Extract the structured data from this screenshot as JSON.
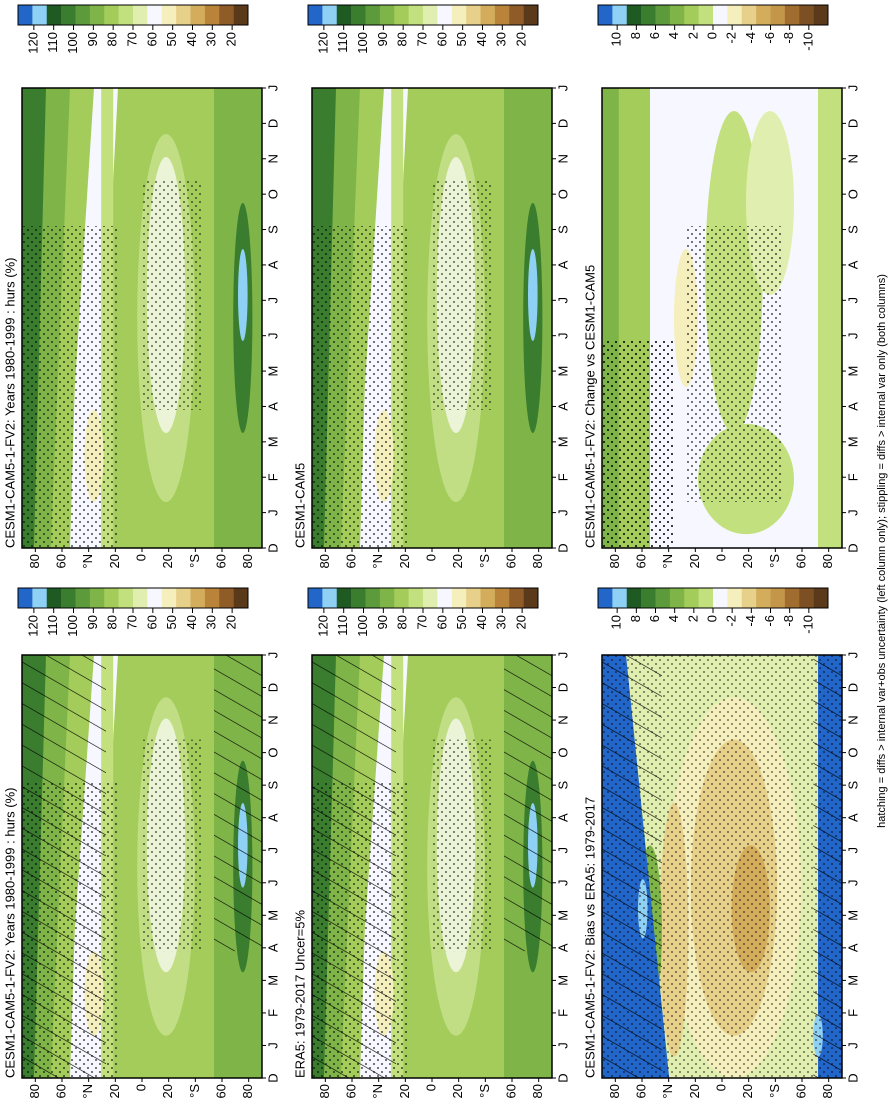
{
  "months": [
    "D",
    "J",
    "F",
    "M",
    "A",
    "M",
    "J",
    "J",
    "A",
    "S",
    "O",
    "N",
    "D",
    "J"
  ],
  "lat_ticks": [
    80,
    60,
    {
      "value": 40,
      "label": "°N"
    },
    20,
    0,
    {
      "value": -20,
      "label": "20"
    },
    {
      "value": -40,
      "label": "°S"
    },
    {
      "value": -60,
      "label": "60"
    },
    {
      "value": -80,
      "label": "80"
    }
  ],
  "latlim": [
    90,
    -90
  ],
  "footnote": "hatching = diffs > internal var+obs uncertainty (left column only); stippling = diffs > internal var only (both columns)",
  "panels": [
    {
      "title": "CESM1-CAM5-1-FV2: Years 1980-1999 : hurs (%)",
      "colorbar": {
        "clim": [
          128,
          12
        ],
        "ticks": [
          120,
          110,
          100,
          90,
          80,
          70,
          60,
          50,
          40,
          30,
          20
        ],
        "colors": [
          "#2166c8",
          "#8fd0f5",
          "#1e5a22",
          "#3a7d2e",
          "#5d9a3c",
          "#7fb548",
          "#a3cc5a",
          "#c3e07e",
          "#e0efb0",
          "#f7f8ff",
          "#f5eebd",
          "#e7d08a",
          "#d4ad5c",
          "#b9833a",
          "#8f5c28",
          "#5b3a1c"
        ]
      }
    },
    {
      "title": "CESM1-CAM5",
      "colorbar": {
        "clim": [
          128,
          12
        ],
        "ticks": [
          120,
          110,
          100,
          90,
          80,
          70,
          60,
          50,
          40,
          30,
          20
        ],
        "colors": [
          "#2166c8",
          "#8fd0f5",
          "#1e5a22",
          "#3a7d2e",
          "#5d9a3c",
          "#7fb548",
          "#a3cc5a",
          "#c3e07e",
          "#e0efb0",
          "#f7f8ff",
          "#f5eebd",
          "#e7d08a",
          "#d4ad5c",
          "#b9833a",
          "#8f5c28",
          "#5b3a1c"
        ]
      }
    },
    {
      "title": "CESM1-CAM5-1-FV2: Change vs CESM1-CAM5",
      "colorbar": {
        "clim": [
          12,
          -12
        ],
        "ticks": [
          10,
          8,
          6,
          4,
          2,
          0,
          -2,
          -4,
          -6,
          -8,
          -10
        ],
        "colors": [
          "#2166c8",
          "#8fd0f5",
          "#1e5a22",
          "#3a7d2e",
          "#5d9a3c",
          "#7fb548",
          "#a3cc5a",
          "#c3e07e",
          "#f7f8ff",
          "#f5eebd",
          "#e7d08a",
          "#d4ad5c",
          "#c4964a",
          "#a06c30",
          "#7d5024",
          "#5b3a1c"
        ]
      }
    },
    {
      "title": "CESM1-CAM5-1-FV2: Years 1980-1999 : hurs (%)",
      "colorbar": {
        "clim": [
          128,
          12
        ],
        "ticks": [
          120,
          110,
          100,
          90,
          80,
          70,
          60,
          50,
          40,
          30,
          20
        ],
        "colors": [
          "#2166c8",
          "#8fd0f5",
          "#1e5a22",
          "#3a7d2e",
          "#5d9a3c",
          "#7fb548",
          "#a3cc5a",
          "#c3e07e",
          "#e0efb0",
          "#f7f8ff",
          "#f5eebd",
          "#e7d08a",
          "#d4ad5c",
          "#b9833a",
          "#8f5c28",
          "#5b3a1c"
        ]
      }
    },
    {
      "title": "ERA5: 1979-2017 Uncer=5%",
      "colorbar": {
        "clim": [
          128,
          12
        ],
        "ticks": [
          120,
          110,
          100,
          90,
          80,
          70,
          60,
          50,
          40,
          30,
          20
        ],
        "colors": [
          "#2166c8",
          "#8fd0f5",
          "#1e5a22",
          "#3a7d2e",
          "#5d9a3c",
          "#7fb548",
          "#a3cc5a",
          "#c3e07e",
          "#e0efb0",
          "#f7f8ff",
          "#f5eebd",
          "#e7d08a",
          "#d4ad5c",
          "#b9833a",
          "#8f5c28",
          "#5b3a1c"
        ]
      }
    },
    {
      "title": "CESM1-CAM5-1-FV2: Bias vs ERA5: 1979-2017",
      "colorbar": {
        "clim": [
          12,
          -12
        ],
        "ticks": [
          10,
          8,
          6,
          4,
          2,
          0,
          -2,
          -4,
          -6,
          -8,
          -10
        ],
        "colors": [
          "#2166c8",
          "#8fd0f5",
          "#1e5a22",
          "#3a7d2e",
          "#5d9a3c",
          "#7fb548",
          "#a3cc5a",
          "#c3e07e",
          "#f7f8ff",
          "#f5eebd",
          "#e7d08a",
          "#d4ad5c",
          "#c4964a",
          "#a06c30",
          "#7d5024",
          "#5b3a1c"
        ]
      }
    }
  ]
}
